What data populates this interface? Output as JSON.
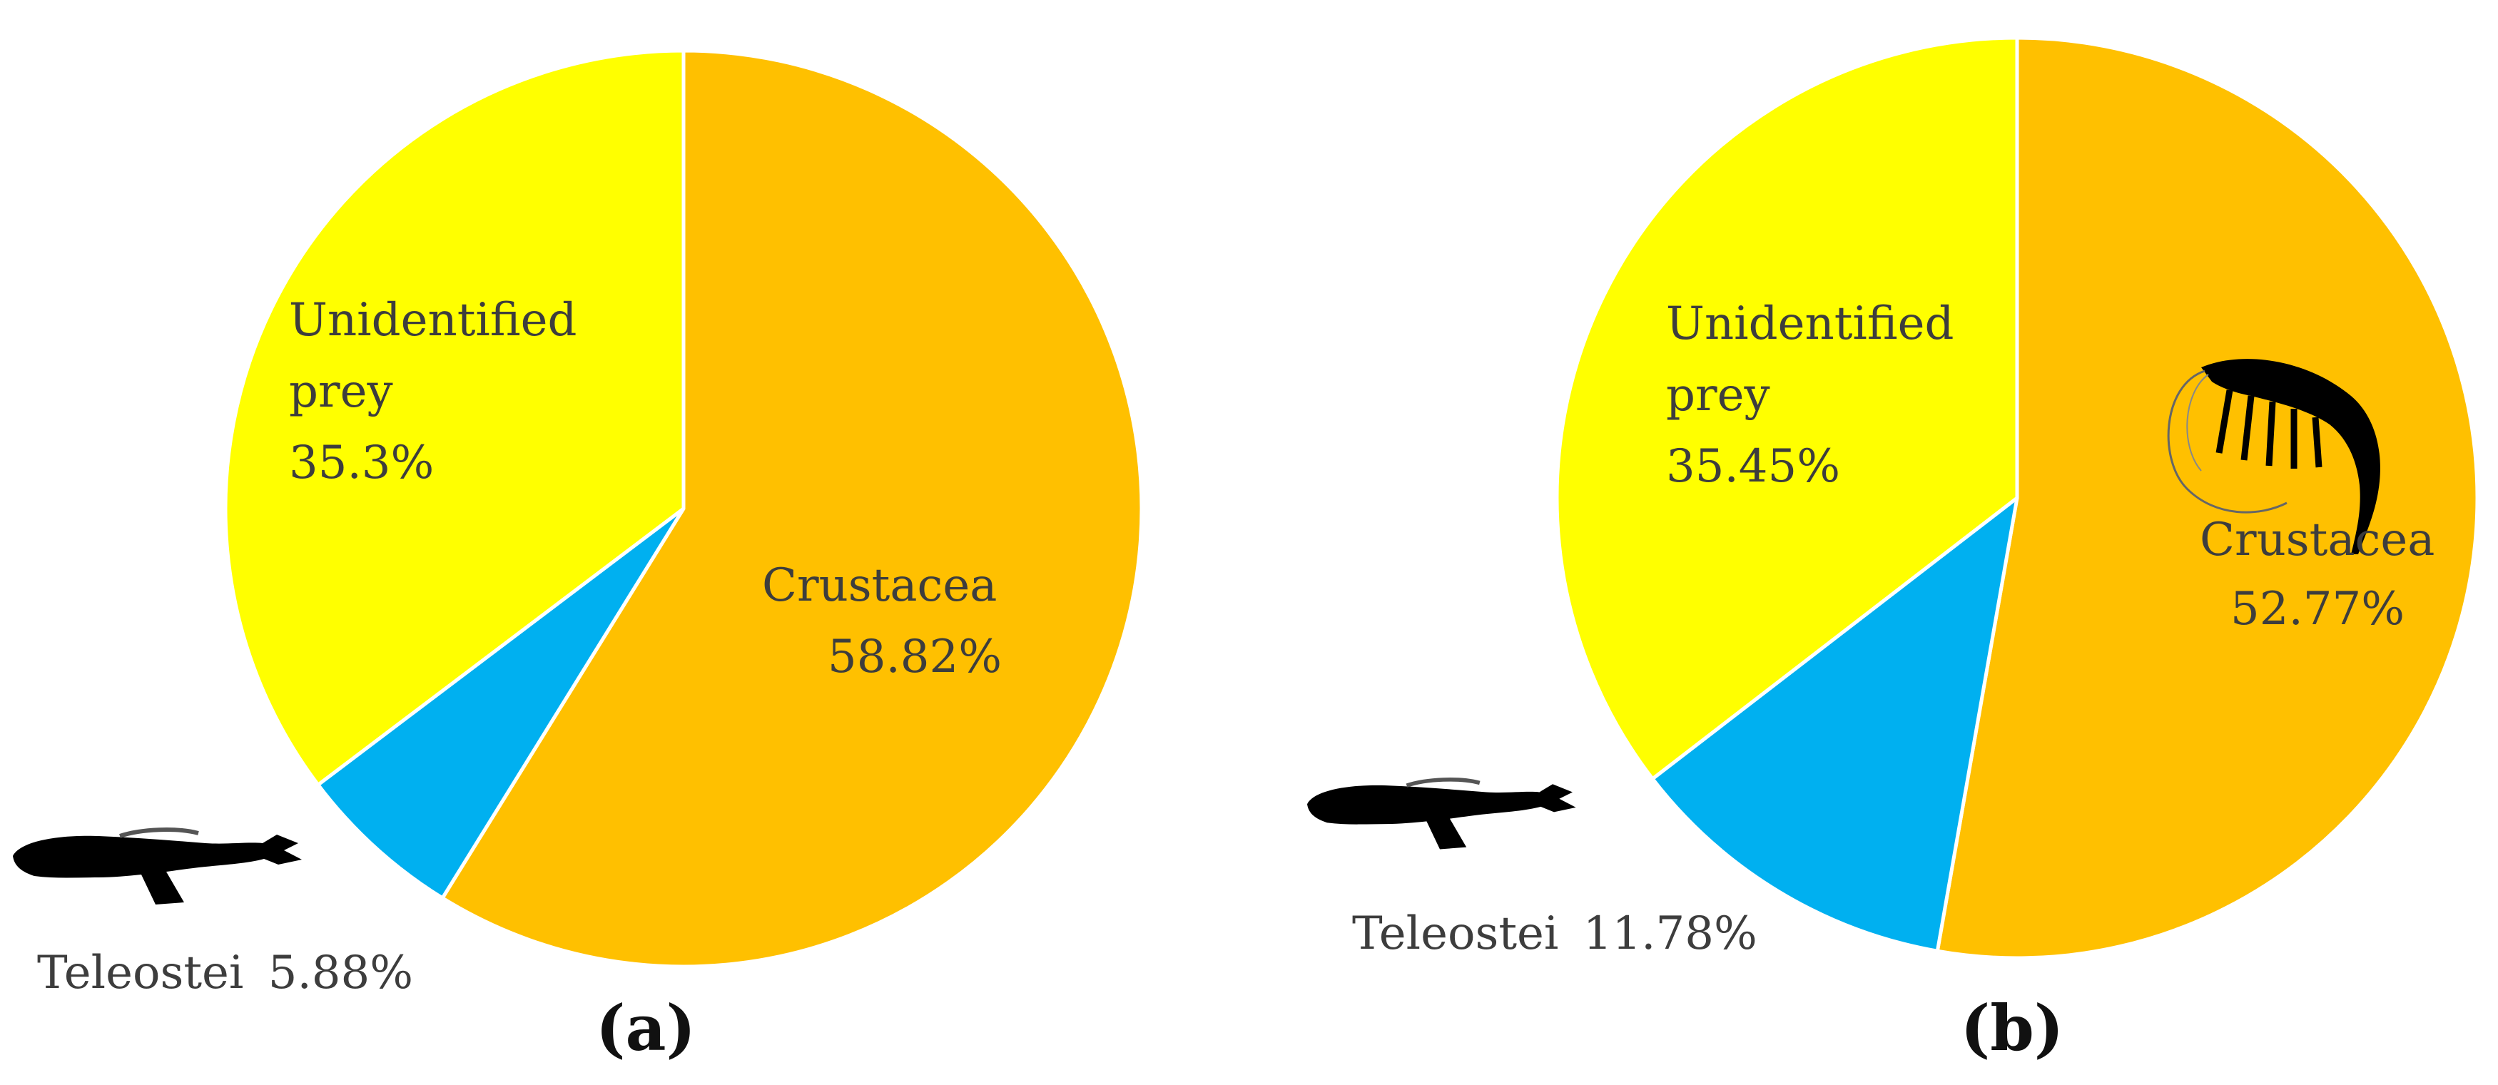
{
  "chart_data": [
    {
      "type": "pie",
      "panel_label": "(a)",
      "start_angle_deg": 0,
      "direction": "clockwise",
      "slices": [
        {
          "name": "Crustacea",
          "value": 58.82,
          "value_label": "58.82%",
          "color": "#FFC000"
        },
        {
          "name": "Teleostei",
          "value": 5.88,
          "value_label": "5.88%",
          "color": "#00B0F0"
        },
        {
          "name": "Unidentified prey",
          "value": 35.3,
          "value_label": "35.3%",
          "color": "#FFFF00"
        }
      ]
    },
    {
      "type": "pie",
      "panel_label": "(b)",
      "start_angle_deg": 0,
      "direction": "clockwise",
      "slices": [
        {
          "name": "Crustacea",
          "value": 52.77,
          "value_label": "52.77%",
          "color": "#FFC000"
        },
        {
          "name": "Teleostei",
          "value": 11.78,
          "value_label": "11.78%",
          "color": "#00B0F0"
        },
        {
          "name": "Unidentified prey",
          "value": 35.45,
          "value_label": "35.45%",
          "color": "#FFFF00"
        }
      ]
    }
  ],
  "icons": {
    "fish": "fish-silhouette-icon",
    "shrimp": "shrimp-silhouette-icon"
  },
  "style": {
    "slice_border_color": "#FFFFFF",
    "label_color": "#3d3d3d",
    "silhouette_color": "#000000"
  }
}
